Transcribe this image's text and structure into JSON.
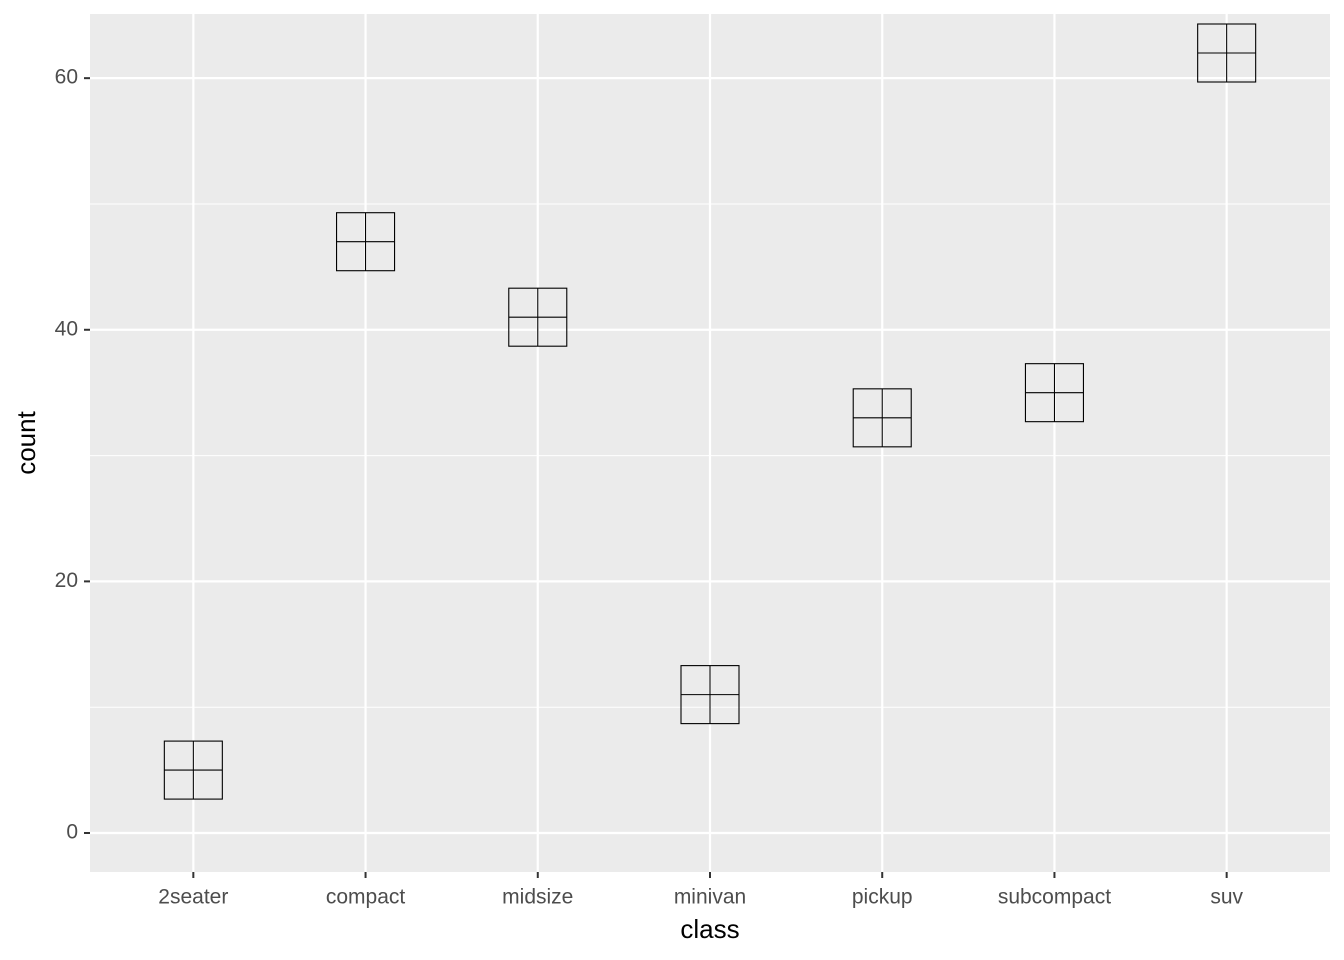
{
  "chart_data": {
    "type": "scatter",
    "x_label": "class",
    "y_label": "count",
    "categories": [
      "2seater",
      "compact",
      "midsize",
      "minivan",
      "pickup",
      "subcompact",
      "suv"
    ],
    "values": [
      5,
      47,
      41,
      11,
      33,
      35,
      62
    ],
    "color": "#000000",
    "ylim": [
      -3.1,
      65.1
    ],
    "yticks": [
      0,
      20,
      40,
      60
    ],
    "minor_yticks": [
      10,
      30,
      50
    ],
    "grid": true
  }
}
